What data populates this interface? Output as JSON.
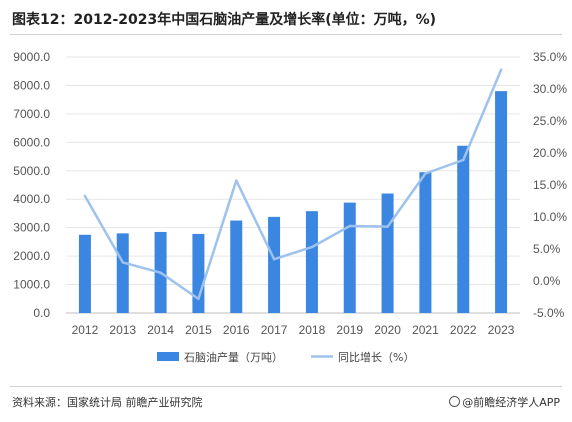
{
  "title": "图表12：2012-2023年中国石脑油产量及增长率(单位：万吨，%)",
  "source": "资料来源：国家统计局 前瞻产业研究院",
  "brand": "@前瞻经济学人APP",
  "colors": {
    "bar": "#3a86e0",
    "line": "#9ec2ee",
    "grid": "#e6e6e6"
  },
  "chart_data": {
    "type": "bar",
    "categories": [
      "2012",
      "2013",
      "2014",
      "2015",
      "2016",
      "2017",
      "2018",
      "2019",
      "2020",
      "2021",
      "2022",
      "2023"
    ],
    "series": [
      {
        "name": "石脑油产量（万吨）",
        "type": "bar",
        "axis": "left",
        "values": [
          2750,
          2800,
          2850,
          2780,
          3250,
          3380,
          3580,
          3880,
          4200,
          4950,
          5880,
          7800
        ]
      },
      {
        "name": "同比增长（%）",
        "type": "line",
        "axis": "right",
        "values": [
          13.3,
          2.9,
          1.3,
          -2.8,
          15.7,
          3.4,
          5.3,
          8.6,
          8.5,
          16.8,
          18.9,
          33.0
        ]
      }
    ],
    "left_axis": {
      "min": 0,
      "max": 9000,
      "step": 1000,
      "tick_labels": [
        "0.0",
        "1000.0",
        "2000.0",
        "3000.0",
        "4000.0",
        "5000.0",
        "6000.0",
        "7000.0",
        "8000.0",
        "9000.0"
      ]
    },
    "right_axis": {
      "min": -5,
      "max": 35,
      "step": 5,
      "tick_labels": [
        "-5.0%",
        "0.0%",
        "5.0%",
        "10.0%",
        "15.0%",
        "20.0%",
        "25.0%",
        "30.0%",
        "35.0%"
      ]
    },
    "grid": true,
    "legend_position": "bottom"
  }
}
